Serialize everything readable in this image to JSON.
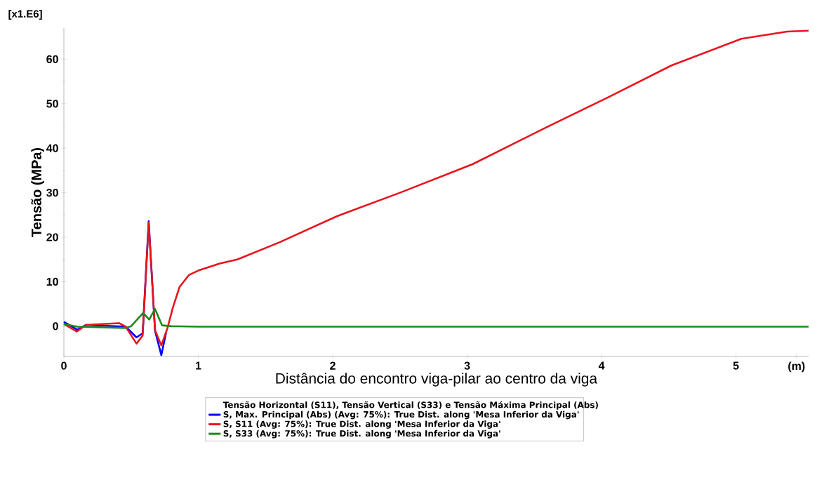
{
  "chart_data": {
    "type": "line",
    "xlabel": "Distância do encontro viga-pilar ao centro da viga",
    "ylabel": "Tensão (MPa)",
    "legend_title": "Tensão Horizontal (S11), Tensão Vertical (S33) e Tensão Máxima Principal (Abs)",
    "annotations": [
      "[x1.E6]"
    ],
    "series": [
      {
        "name": "S, Max. Principal (Abs) (Avg: 75%): True Dist. along 'Mesa Inferior da Viga'",
        "color": "#0000ff",
        "x": [
          0,
          0.1,
          0.165,
          0.41,
          0.46,
          0.54,
          0.586,
          0.631,
          0.678,
          0.725,
          0.76
        ],
        "values": [
          1.0,
          -0.8,
          0.3,
          null,
          -0.1,
          -2.5,
          -1.6,
          23.6,
          -1.0,
          -6.5,
          -1.5
        ]
      },
      {
        "name": "S, S11 (Avg: 75%): True Dist. along 'Mesa Inferior da Viga'",
        "color": "#e8141e",
        "x": [
          0,
          0.096,
          0.165,
          0.41,
          0.46,
          0.54,
          0.586,
          0.631,
          0.678,
          0.725,
          0.77,
          0.81,
          0.86,
          0.93,
          1.0,
          1.16,
          1.29,
          1.6,
          2.03,
          2.5,
          3.04,
          3.59,
          4.06,
          4.52,
          5.04,
          5.38,
          5.54
        ],
        "values": [
          0.5,
          -1.2,
          0.3,
          0.7,
          -0.1,
          -3.9,
          -2.1,
          23.3,
          -0.9,
          -4.3,
          -0.5,
          4.1,
          8.8,
          11.5,
          12.5,
          14.1,
          15.0,
          18.8,
          24.7,
          30.0,
          36.4,
          44.7,
          51.6,
          58.6,
          64.6,
          66.2,
          66.4
        ]
      },
      {
        "name": "S, S33 (Avg: 75%): True Dist. along 'Mesa Inferior da Viga'",
        "color": "#1a8a1a",
        "x": [
          0,
          0.1,
          0.46,
          0.5,
          0.59,
          0.635,
          0.678,
          0.73,
          0.8,
          1.0,
          2.0,
          3.0,
          4.0,
          5.0,
          5.54
        ],
        "values": [
          0.5,
          -0.1,
          -0.4,
          0.0,
          3.0,
          1.5,
          3.9,
          0.2,
          0.0,
          -0.1,
          -0.1,
          -0.1,
          -0.1,
          -0.1,
          -0.1
        ]
      }
    ],
    "xlim": [
      0,
      5.54
    ],
    "xticks": [
      0,
      1,
      2,
      3,
      4,
      5,
      {
        "value": 5.45,
        "label": "(m)"
      }
    ],
    "ylim": [
      -6.8,
      67
    ],
    "yticks": [
      0,
      10,
      20,
      30,
      40,
      50,
      60
    ],
    "grid": false,
    "legend": "bottom",
    "marker": "none",
    "line_style": "solid"
  }
}
